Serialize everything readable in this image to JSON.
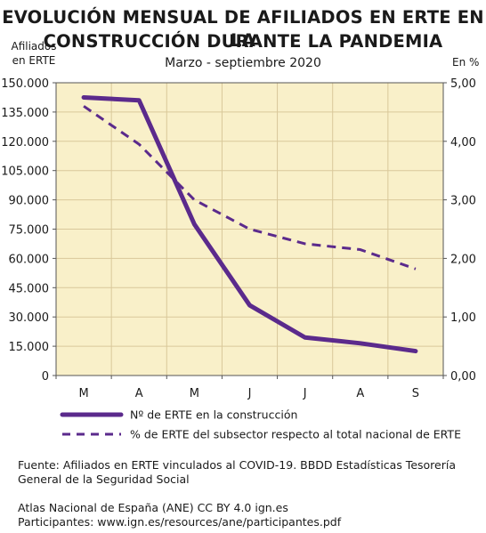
{
  "header": {
    "title_line1": "EVOLUCIÓN MENSUAL DE AFILIADOS EN ERTE EN LA",
    "title_line2": "CONSTRUCCIÓN DURANTE LA PANDEMIA",
    "subtitle": "Marzo - septiembre 2020",
    "left_axis_title_line1": "Afiliados",
    "left_axis_title_line2": "en ERTE",
    "right_axis_title": "En %"
  },
  "colors": {
    "plot_background": "#f9f0c9",
    "grid": "#d9c89a",
    "series_color": "#5b2a8c"
  },
  "chart_data": {
    "type": "line",
    "categories": [
      "M",
      "A",
      "M",
      "J",
      "J",
      "A",
      "S"
    ],
    "left_axis": {
      "ylim": [
        0,
        150000
      ],
      "tick_labels": [
        "0",
        "15.000",
        "30.000",
        "45.000",
        "60.000",
        "75.000",
        "90.000",
        "105.000",
        "120.000",
        "135.000",
        "150.000"
      ]
    },
    "right_axis": {
      "ylim": [
        0,
        5
      ],
      "tick_labels": [
        "0,00",
        "1,00",
        "2,00",
        "3,00",
        "4,00",
        "5,00"
      ]
    },
    "grid": true,
    "legend_position": "bottom",
    "series": [
      {
        "name": "Nº de ERTE en la construcción",
        "axis": "left",
        "style": "solid",
        "values": [
          142500,
          141000,
          77500,
          36000,
          19500,
          16500,
          12500
        ]
      },
      {
        "name": "% de ERTE del subsector respecto al total nacional de ERTE",
        "axis": "right",
        "style": "dashed",
        "values": [
          4.6,
          3.95,
          3.0,
          2.5,
          2.25,
          2.15,
          1.82
        ]
      }
    ]
  },
  "footer": {
    "source_line1": "Fuente: Afiliados en ERTE vinculados al COVID-19. BBDD Estadísticas Tesorería",
    "source_line2": "General de la Seguridad Social",
    "atlas_line1": "Atlas Nacional de España (ANE) CC BY 4.0 ign.es",
    "atlas_line2": "Participantes: www.ign.es/resources/ane/participantes.pdf"
  }
}
